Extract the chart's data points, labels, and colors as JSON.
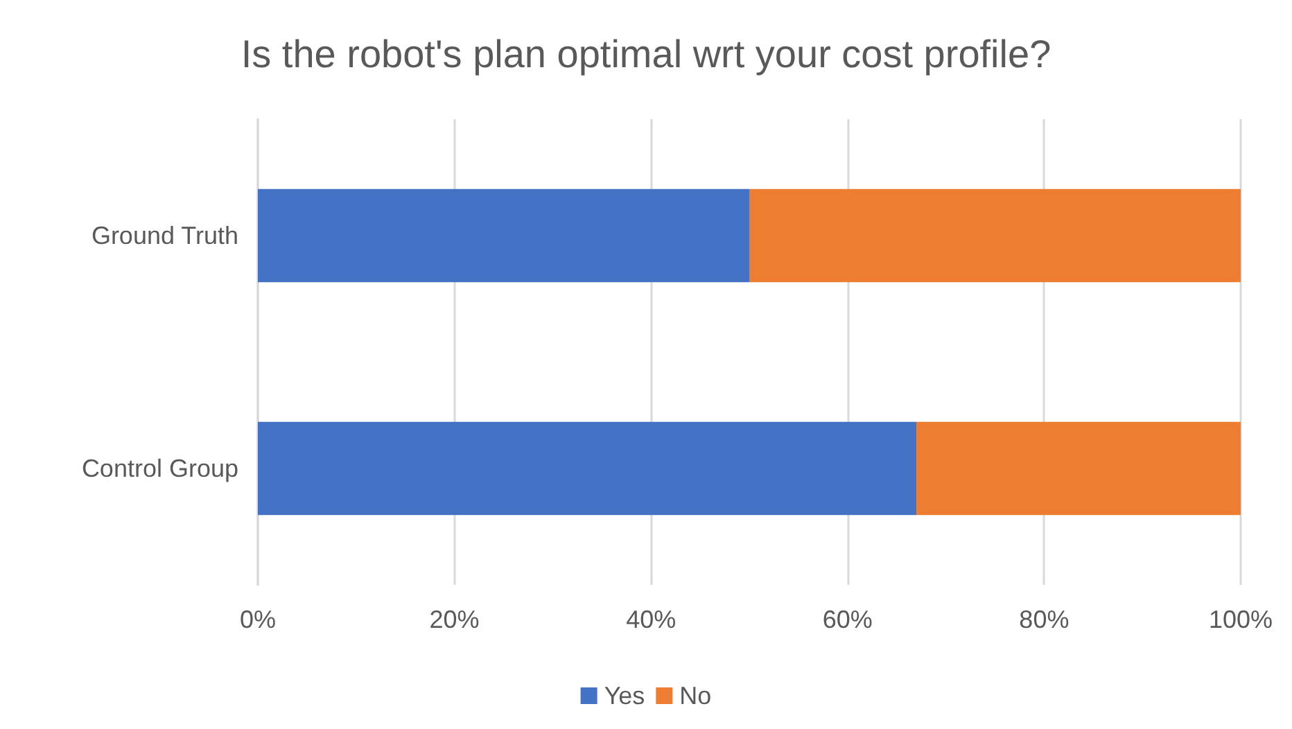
{
  "chart_data": {
    "type": "bar",
    "orientation": "horizontal",
    "stacked": true,
    "title": "Is the robot's plan optimal wrt your cost profile?",
    "categories": [
      "Ground Truth",
      "Control Group"
    ],
    "series": [
      {
        "name": "Yes",
        "color": "#4472c4",
        "values": [
          50,
          67
        ]
      },
      {
        "name": "No",
        "color": "#ed7d31",
        "values": [
          50,
          33
        ]
      }
    ],
    "xlim": [
      0,
      100
    ],
    "xticks": [
      {
        "value": 0,
        "label": "0%"
      },
      {
        "value": 20,
        "label": "20%"
      },
      {
        "value": 40,
        "label": "40%"
      },
      {
        "value": 60,
        "label": "60%"
      },
      {
        "value": 80,
        "label": "80%"
      },
      {
        "value": 100,
        "label": "100%"
      }
    ],
    "grid": "x",
    "legend": "bottom"
  }
}
